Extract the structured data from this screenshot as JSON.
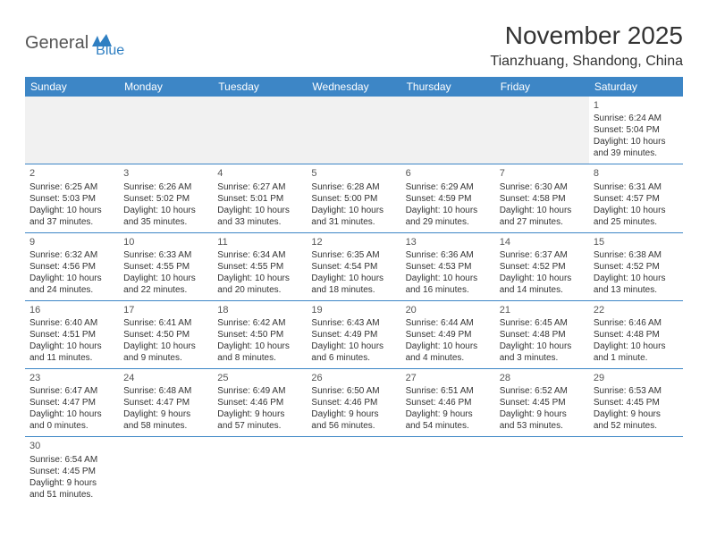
{
  "logo": {
    "part1": "General",
    "part2": "Blue"
  },
  "title": "November 2025",
  "location": "Tianzhuang, Shandong, China",
  "colors": {
    "header_bg": "#3d86c6",
    "header_text": "#ffffff",
    "logo_gray": "#555555",
    "logo_blue": "#2f7fc2",
    "text": "#333333",
    "rule": "#3d86c6",
    "blank_bg": "#f1f1f1"
  },
  "weekdays": [
    "Sunday",
    "Monday",
    "Tuesday",
    "Wednesday",
    "Thursday",
    "Friday",
    "Saturday"
  ],
  "grid": [
    [
      {
        "blank": true
      },
      {
        "blank": true
      },
      {
        "blank": true
      },
      {
        "blank": true
      },
      {
        "blank": true
      },
      {
        "blank": true
      },
      {
        "day": "1",
        "sunrise": "Sunrise: 6:24 AM",
        "sunset": "Sunset: 5:04 PM",
        "daylight1": "Daylight: 10 hours",
        "daylight2": "and 39 minutes."
      }
    ],
    [
      {
        "day": "2",
        "sunrise": "Sunrise: 6:25 AM",
        "sunset": "Sunset: 5:03 PM",
        "daylight1": "Daylight: 10 hours",
        "daylight2": "and 37 minutes."
      },
      {
        "day": "3",
        "sunrise": "Sunrise: 6:26 AM",
        "sunset": "Sunset: 5:02 PM",
        "daylight1": "Daylight: 10 hours",
        "daylight2": "and 35 minutes."
      },
      {
        "day": "4",
        "sunrise": "Sunrise: 6:27 AM",
        "sunset": "Sunset: 5:01 PM",
        "daylight1": "Daylight: 10 hours",
        "daylight2": "and 33 minutes."
      },
      {
        "day": "5",
        "sunrise": "Sunrise: 6:28 AM",
        "sunset": "Sunset: 5:00 PM",
        "daylight1": "Daylight: 10 hours",
        "daylight2": "and 31 minutes."
      },
      {
        "day": "6",
        "sunrise": "Sunrise: 6:29 AM",
        "sunset": "Sunset: 4:59 PM",
        "daylight1": "Daylight: 10 hours",
        "daylight2": "and 29 minutes."
      },
      {
        "day": "7",
        "sunrise": "Sunrise: 6:30 AM",
        "sunset": "Sunset: 4:58 PM",
        "daylight1": "Daylight: 10 hours",
        "daylight2": "and 27 minutes."
      },
      {
        "day": "8",
        "sunrise": "Sunrise: 6:31 AM",
        "sunset": "Sunset: 4:57 PM",
        "daylight1": "Daylight: 10 hours",
        "daylight2": "and 25 minutes."
      }
    ],
    [
      {
        "day": "9",
        "sunrise": "Sunrise: 6:32 AM",
        "sunset": "Sunset: 4:56 PM",
        "daylight1": "Daylight: 10 hours",
        "daylight2": "and 24 minutes."
      },
      {
        "day": "10",
        "sunrise": "Sunrise: 6:33 AM",
        "sunset": "Sunset: 4:55 PM",
        "daylight1": "Daylight: 10 hours",
        "daylight2": "and 22 minutes."
      },
      {
        "day": "11",
        "sunrise": "Sunrise: 6:34 AM",
        "sunset": "Sunset: 4:55 PM",
        "daylight1": "Daylight: 10 hours",
        "daylight2": "and 20 minutes."
      },
      {
        "day": "12",
        "sunrise": "Sunrise: 6:35 AM",
        "sunset": "Sunset: 4:54 PM",
        "daylight1": "Daylight: 10 hours",
        "daylight2": "and 18 minutes."
      },
      {
        "day": "13",
        "sunrise": "Sunrise: 6:36 AM",
        "sunset": "Sunset: 4:53 PM",
        "daylight1": "Daylight: 10 hours",
        "daylight2": "and 16 minutes."
      },
      {
        "day": "14",
        "sunrise": "Sunrise: 6:37 AM",
        "sunset": "Sunset: 4:52 PM",
        "daylight1": "Daylight: 10 hours",
        "daylight2": "and 14 minutes."
      },
      {
        "day": "15",
        "sunrise": "Sunrise: 6:38 AM",
        "sunset": "Sunset: 4:52 PM",
        "daylight1": "Daylight: 10 hours",
        "daylight2": "and 13 minutes."
      }
    ],
    [
      {
        "day": "16",
        "sunrise": "Sunrise: 6:40 AM",
        "sunset": "Sunset: 4:51 PM",
        "daylight1": "Daylight: 10 hours",
        "daylight2": "and 11 minutes."
      },
      {
        "day": "17",
        "sunrise": "Sunrise: 6:41 AM",
        "sunset": "Sunset: 4:50 PM",
        "daylight1": "Daylight: 10 hours",
        "daylight2": "and 9 minutes."
      },
      {
        "day": "18",
        "sunrise": "Sunrise: 6:42 AM",
        "sunset": "Sunset: 4:50 PM",
        "daylight1": "Daylight: 10 hours",
        "daylight2": "and 8 minutes."
      },
      {
        "day": "19",
        "sunrise": "Sunrise: 6:43 AM",
        "sunset": "Sunset: 4:49 PM",
        "daylight1": "Daylight: 10 hours",
        "daylight2": "and 6 minutes."
      },
      {
        "day": "20",
        "sunrise": "Sunrise: 6:44 AM",
        "sunset": "Sunset: 4:49 PM",
        "daylight1": "Daylight: 10 hours",
        "daylight2": "and 4 minutes."
      },
      {
        "day": "21",
        "sunrise": "Sunrise: 6:45 AM",
        "sunset": "Sunset: 4:48 PM",
        "daylight1": "Daylight: 10 hours",
        "daylight2": "and 3 minutes."
      },
      {
        "day": "22",
        "sunrise": "Sunrise: 6:46 AM",
        "sunset": "Sunset: 4:48 PM",
        "daylight1": "Daylight: 10 hours",
        "daylight2": "and 1 minute."
      }
    ],
    [
      {
        "day": "23",
        "sunrise": "Sunrise: 6:47 AM",
        "sunset": "Sunset: 4:47 PM",
        "daylight1": "Daylight: 10 hours",
        "daylight2": "and 0 minutes."
      },
      {
        "day": "24",
        "sunrise": "Sunrise: 6:48 AM",
        "sunset": "Sunset: 4:47 PM",
        "daylight1": "Daylight: 9 hours",
        "daylight2": "and 58 minutes."
      },
      {
        "day": "25",
        "sunrise": "Sunrise: 6:49 AM",
        "sunset": "Sunset: 4:46 PM",
        "daylight1": "Daylight: 9 hours",
        "daylight2": "and 57 minutes."
      },
      {
        "day": "26",
        "sunrise": "Sunrise: 6:50 AM",
        "sunset": "Sunset: 4:46 PM",
        "daylight1": "Daylight: 9 hours",
        "daylight2": "and 56 minutes."
      },
      {
        "day": "27",
        "sunrise": "Sunrise: 6:51 AM",
        "sunset": "Sunset: 4:46 PM",
        "daylight1": "Daylight: 9 hours",
        "daylight2": "and 54 minutes."
      },
      {
        "day": "28",
        "sunrise": "Sunrise: 6:52 AM",
        "sunset": "Sunset: 4:45 PM",
        "daylight1": "Daylight: 9 hours",
        "daylight2": "and 53 minutes."
      },
      {
        "day": "29",
        "sunrise": "Sunrise: 6:53 AM",
        "sunset": "Sunset: 4:45 PM",
        "daylight1": "Daylight: 9 hours",
        "daylight2": "and 52 minutes."
      }
    ],
    [
      {
        "day": "30",
        "sunrise": "Sunrise: 6:54 AM",
        "sunset": "Sunset: 4:45 PM",
        "daylight1": "Daylight: 9 hours",
        "daylight2": "and 51 minutes."
      },
      {
        "blank": true
      },
      {
        "blank": true
      },
      {
        "blank": true
      },
      {
        "blank": true
      },
      {
        "blank": true
      },
      {
        "blank": true
      }
    ]
  ]
}
